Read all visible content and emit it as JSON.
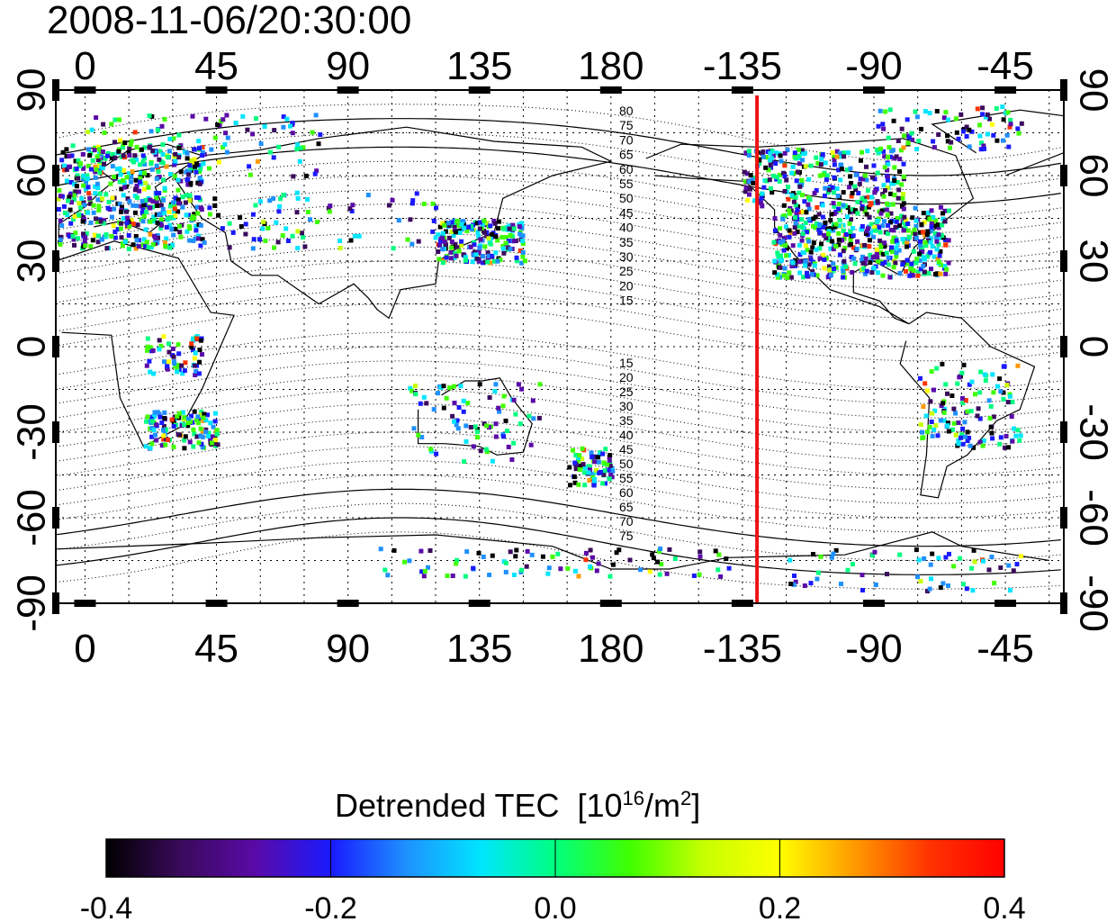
{
  "title": "2008-11-06/20:30:00",
  "map": {
    "lon_ticks": [
      "0",
      "45",
      "90",
      "135",
      "180",
      "-135",
      "-90",
      "-45"
    ],
    "lat_ticks": [
      "90",
      "60",
      "30",
      "0",
      "-30",
      "-60",
      "-90"
    ],
    "lon_tick_values": [
      0,
      45,
      90,
      135,
      180,
      225,
      270,
      315
    ],
    "lat_tick_values": [
      90,
      60,
      30,
      0,
      -30,
      -60,
      -90
    ],
    "lon_range": [
      -10,
      335
    ],
    "lat_range": [
      -90,
      90
    ],
    "grid": true,
    "marker_longitude": -130,
    "marker_color": "#ee1111",
    "contour_labels_north": [
      "80",
      "75",
      "70",
      "65",
      "60",
      "55",
      "50",
      "45",
      "40",
      "35",
      "30",
      "25",
      "20",
      "15"
    ],
    "contour_labels_south": [
      "15",
      "20",
      "25",
      "30",
      "35",
      "40",
      "45",
      "50",
      "55",
      "60",
      "65",
      "70",
      "75"
    ]
  },
  "colorbar": {
    "title": "Detrended TEC",
    "units_prefix": "[10",
    "units_exp1": "16",
    "units_mid": "/m",
    "units_exp2": "2",
    "units_suffix": "]",
    "tick_labels": [
      "-0.4",
      "-0.2",
      "0.0",
      "0.2",
      "0.4"
    ],
    "range": [
      -0.4,
      0.4
    ],
    "colors": [
      "#000000",
      "#3a0a5c",
      "#5a0aa8",
      "#1a1aff",
      "#1e90ff",
      "#00e5ff",
      "#00ff7f",
      "#40ff00",
      "#c8ff00",
      "#ffff00",
      "#ff9900",
      "#ff3300",
      "#ff0000"
    ]
  }
}
